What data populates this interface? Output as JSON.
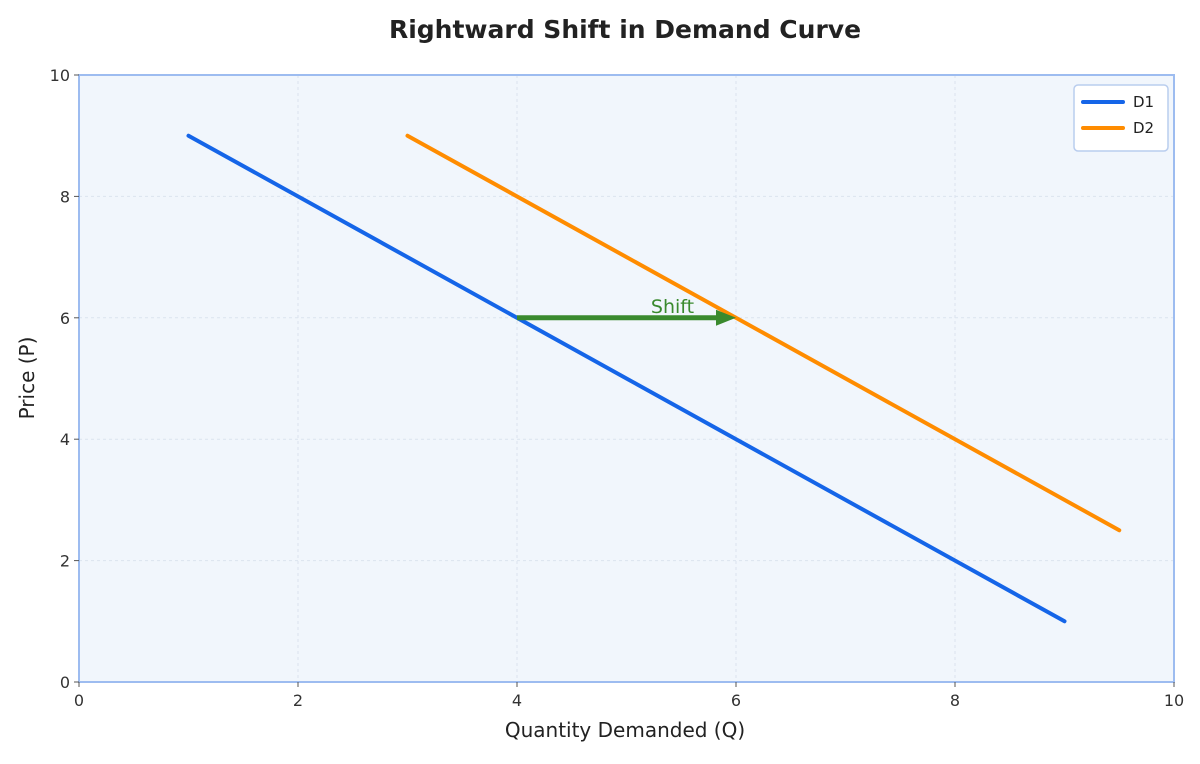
{
  "chart_data": {
    "type": "line",
    "title": "Rightward Shift in Demand Curve",
    "xlabel": "Quantity Demanded (Q)",
    "ylabel": "Price (P)",
    "xlim": [
      0,
      10
    ],
    "ylim": [
      0,
      10
    ],
    "xticks": [
      0,
      2,
      4,
      6,
      8,
      10
    ],
    "yticks": [
      0,
      2,
      4,
      6,
      8,
      10
    ],
    "grid": true,
    "legend_position": "top-right",
    "series": [
      {
        "name": "D1",
        "color": "#1565e8",
        "points": [
          [
            1,
            9
          ],
          [
            9,
            1
          ]
        ]
      },
      {
        "name": "D2",
        "color": "#ff8c00",
        "points": [
          [
            3,
            9
          ],
          [
            9.5,
            2.5
          ]
        ]
      }
    ],
    "annotations": [
      {
        "type": "arrow",
        "text": "Shift",
        "color": "#3a8a2e",
        "from": [
          4,
          6
        ],
        "to": [
          6,
          6
        ]
      }
    ]
  }
}
